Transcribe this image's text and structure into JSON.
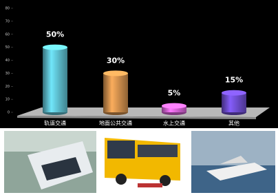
{
  "chart_data": {
    "type": "bar",
    "categories": [
      "轨道交通",
      "地面公共交通",
      "水上交通",
      "其他"
    ],
    "values": [
      50,
      30,
      5,
      15
    ],
    "value_labels": [
      "50%",
      "30%",
      "5%",
      "15%"
    ],
    "colors": [
      "#5ab8c8",
      "#c98a4a",
      "#d060d0",
      "#6a4ac8"
    ],
    "ylim": [
      0,
      80
    ],
    "yticks": [
      0,
      10,
      20,
      30,
      40,
      50,
      60,
      70,
      80
    ]
  }
}
